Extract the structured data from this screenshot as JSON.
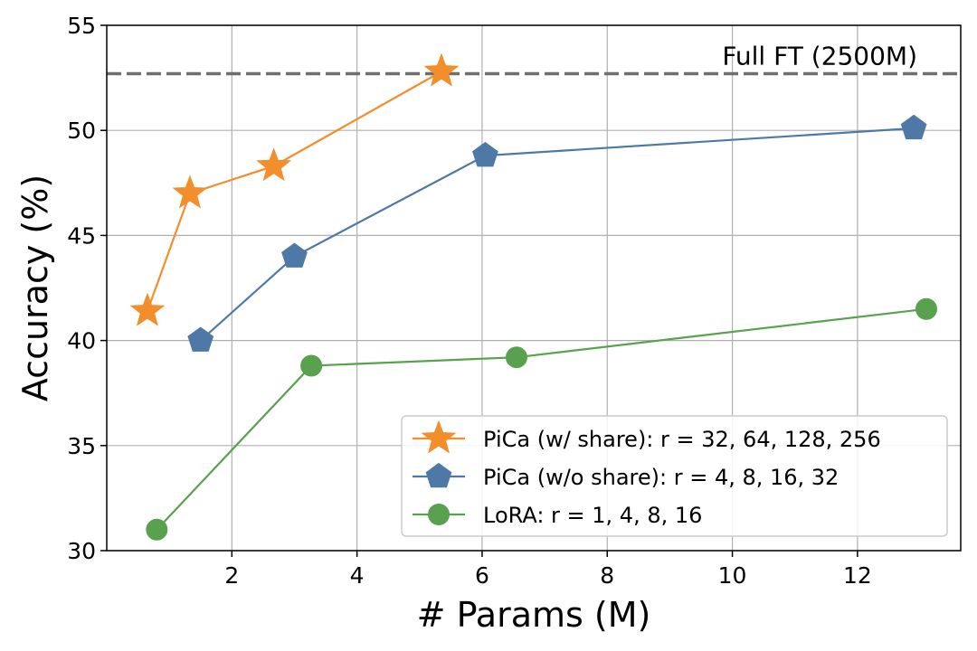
{
  "chart_data": {
    "type": "line",
    "title": "",
    "xlabel": "# Params (M)",
    "ylabel": "Accuracy (%)",
    "xlim": [
      0,
      13.65
    ],
    "ylim": [
      30,
      55
    ],
    "xticks": [
      2,
      4,
      6,
      8,
      10,
      12
    ],
    "yticks": [
      30,
      35,
      40,
      45,
      50,
      55
    ],
    "grid": true,
    "legend_position": "bottom-right",
    "reference_line": {
      "y": 52.7,
      "label": "Full FT (2500M)",
      "color": "#6e6e6e",
      "style": "dashed"
    },
    "series": [
      {
        "name": "PiCa (w/ share): r = 32, 64, 128, 256",
        "marker": "star",
        "color": "#f28e2b",
        "x": [
          0.65,
          1.33,
          2.67,
          5.35
        ],
        "y": [
          41.4,
          47.0,
          48.3,
          52.8
        ]
      },
      {
        "name": "PiCa (w/o share): r = 4, 8, 16, 32",
        "marker": "pentagon",
        "color": "#4e79a7",
        "x": [
          1.5,
          3.0,
          6.05,
          12.9
        ],
        "y": [
          40.0,
          44.0,
          48.8,
          50.1
        ]
      },
      {
        "name": "LoRA: r = 1, 4, 8, 16",
        "marker": "circle",
        "color": "#59a14f",
        "x": [
          0.8,
          3.27,
          6.55,
          13.1
        ],
        "y": [
          31.0,
          38.8,
          39.2,
          41.5
        ]
      }
    ]
  }
}
